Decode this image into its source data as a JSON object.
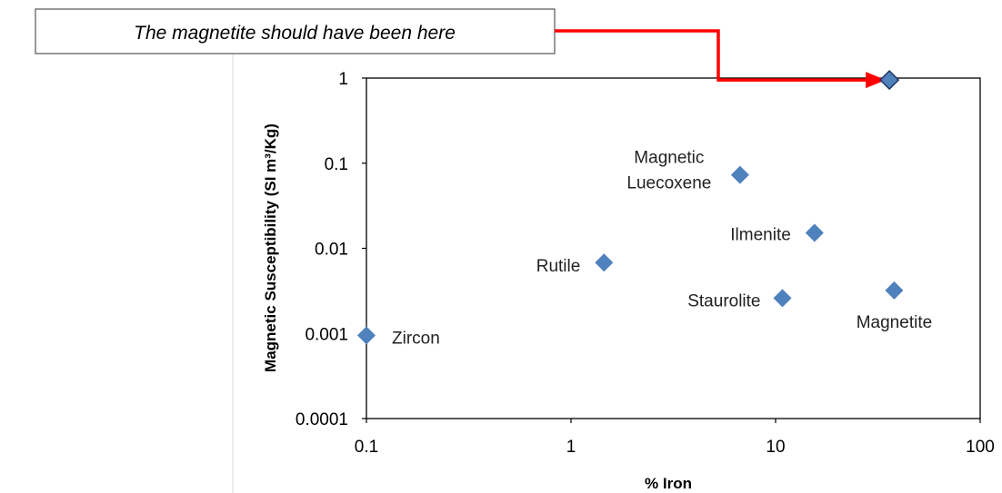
{
  "annotation": {
    "text": "The magnetite should have been here",
    "arrow_color": "#ff0000",
    "target_point": {
      "x": 36,
      "y": 0.95
    }
  },
  "chart_data": {
    "type": "scatter",
    "title": "",
    "xlabel": "% Iron",
    "ylabel": "Magnetic Susceptibility (SI m³/Kg)",
    "xscale": "log",
    "yscale": "log",
    "xlim": [
      0.1,
      100
    ],
    "ylim": [
      0.0001,
      1
    ],
    "xticks": [
      0.1,
      1,
      10,
      100
    ],
    "xtick_labels": [
      "0.1",
      "1",
      "10",
      "100"
    ],
    "yticks": [
      0.0001,
      0.001,
      0.01,
      0.1,
      1
    ],
    "ytick_labels": [
      "0.0001",
      "0.001",
      "0.01",
      "0.1",
      "1"
    ],
    "grid": false,
    "legend": "none",
    "marker": "diamond",
    "marker_color": "#4f81bd",
    "points": [
      {
        "label": "Zircon",
        "x": 0.1,
        "y": 0.00095
      },
      {
        "label": "Rutile",
        "x": 1.45,
        "y": 0.0068
      },
      {
        "label": "Magnetic Luecoxene",
        "x": 6.7,
        "y": 0.073
      },
      {
        "label": "Ilmenite",
        "x": 15.5,
        "y": 0.0152
      },
      {
        "label": "Staurolite",
        "x": 10.8,
        "y": 0.0026
      },
      {
        "label": "Magnetite",
        "x": 38,
        "y": 0.0032
      },
      {
        "label": "",
        "x": 36,
        "y": 0.95
      }
    ]
  }
}
